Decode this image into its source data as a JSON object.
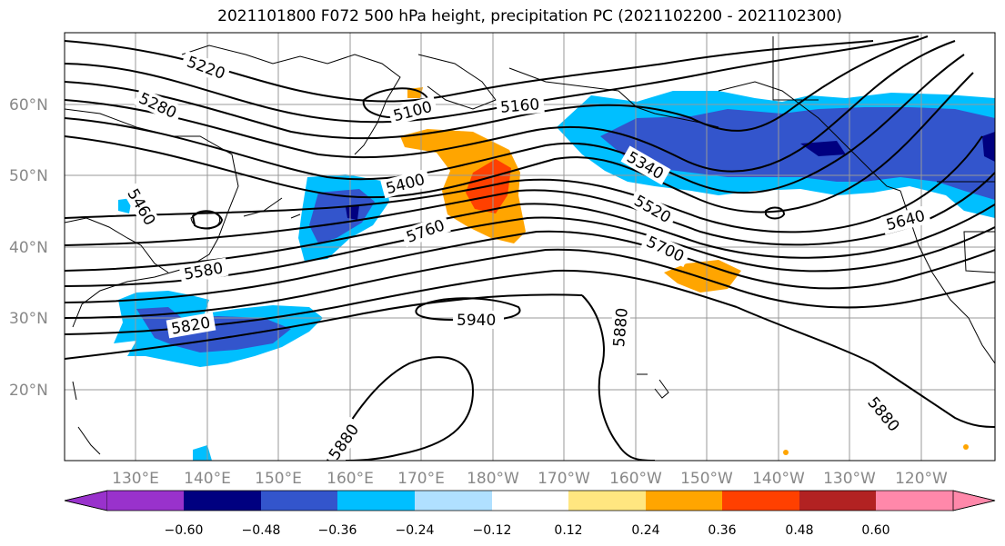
{
  "title": "2021101800 F072 500 hPa height, precipitation PC (2021102200 - 2021102300)",
  "lat_labels": [
    "60°N",
    "50°N",
    "40°N",
    "30°N",
    "20°N"
  ],
  "lon_labels": [
    "130°E",
    "140°E",
    "150°E",
    "160°E",
    "170°E",
    "180°W",
    "170°W",
    "160°W",
    "150°W",
    "140°W",
    "130°W",
    "120°W"
  ],
  "contour_labels": [
    "5220",
    "5280",
    "5100",
    "5160",
    "5340",
    "5400",
    "5460",
    "5520",
    "5580",
    "5640",
    "5700",
    "5760",
    "5820",
    "5880",
    "5880",
    "5880",
    "5940"
  ],
  "colorbar": {
    "ticks": [
      "−0.60",
      "−0.48",
      "−0.36",
      "−0.24",
      "−0.12",
      "0.12",
      "0.24",
      "0.36",
      "0.48",
      "0.60"
    ],
    "colors": [
      "#9932cc",
      "#000080",
      "#3355cc",
      "#00bfff",
      "#b0e0ff",
      "#ffffff",
      "#ffe680",
      "#ffa500",
      "#ff4000",
      "#b22222",
      "#ff88aa"
    ]
  }
}
